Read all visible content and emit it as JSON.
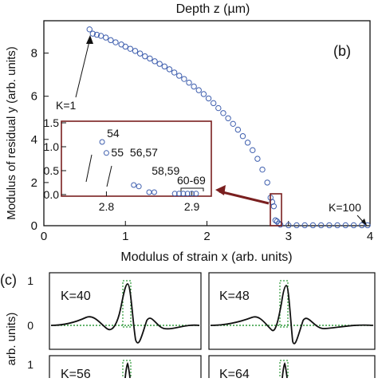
{
  "top_label": "Depth z (µm)",
  "chart_data": [
    {
      "type": "scatter",
      "panel": "(b)",
      "xlabel": "Modulus of strain x (arb. units)",
      "ylabel": "Modulus of residual y (arb. units)",
      "xlim": [
        0,
        4
      ],
      "ylim": [
        0,
        9.5
      ],
      "xticks": [
        "0",
        "1",
        "2",
        "3",
        "4"
      ],
      "yticks": [
        "0",
        "2",
        "4",
        "6",
        "8"
      ],
      "grid": false,
      "points": [
        [
          0.56,
          9.1
        ],
        [
          0.6,
          8.9
        ],
        [
          0.65,
          8.85
        ],
        [
          0.7,
          8.8
        ],
        [
          0.76,
          8.72
        ],
        [
          0.82,
          8.6
        ],
        [
          0.88,
          8.5
        ],
        [
          0.95,
          8.4
        ],
        [
          1.0,
          8.3
        ],
        [
          1.06,
          8.2
        ],
        [
          1.12,
          8.1
        ],
        [
          1.18,
          7.98
        ],
        [
          1.24,
          7.85
        ],
        [
          1.3,
          7.75
        ],
        [
          1.36,
          7.62
        ],
        [
          1.42,
          7.5
        ],
        [
          1.48,
          7.38
        ],
        [
          1.54,
          7.25
        ],
        [
          1.6,
          7.1
        ],
        [
          1.66,
          6.95
        ],
        [
          1.72,
          6.8
        ],
        [
          1.78,
          6.63
        ],
        [
          1.84,
          6.45
        ],
        [
          1.9,
          6.28
        ],
        [
          1.96,
          6.1
        ],
        [
          2.02,
          5.9
        ],
        [
          2.08,
          5.68
        ],
        [
          2.14,
          5.45
        ],
        [
          2.2,
          5.22
        ],
        [
          2.26,
          4.98
        ],
        [
          2.32,
          4.72
        ],
        [
          2.38,
          4.45
        ],
        [
          2.44,
          4.15
        ],
        [
          2.5,
          3.85
        ],
        [
          2.56,
          3.5
        ],
        [
          2.62,
          3.1
        ],
        [
          2.68,
          2.6
        ],
        [
          2.74,
          2.0
        ],
        [
          2.78,
          1.3
        ],
        [
          2.8,
          1.1
        ],
        [
          2.82,
          0.9
        ],
        [
          2.84,
          0.25
        ],
        [
          2.86,
          0.2
        ],
        [
          2.88,
          0.1
        ],
        [
          2.9,
          0.05
        ],
        [
          3.0,
          0.02
        ],
        [
          3.1,
          0.02
        ],
        [
          3.2,
          0.02
        ],
        [
          3.3,
          0.02
        ],
        [
          3.4,
          0.02
        ],
        [
          3.5,
          0.02
        ],
        [
          3.6,
          0.02
        ],
        [
          3.7,
          0.02
        ],
        [
          3.8,
          0.02
        ],
        [
          3.9,
          0.02
        ],
        [
          3.97,
          0.02
        ]
      ],
      "annotations": [
        {
          "text": "K=1",
          "x": 0.56,
          "y": 9.1
        },
        {
          "text": "K=100",
          "x": 3.97,
          "y": 0.02
        }
      ],
      "highlight_box": {
        "x": [
          2.78,
          2.91
        ],
        "y": [
          0,
          1.3
        ]
      }
    },
    {
      "type": "scatter",
      "panel": "inset",
      "xlim": [
        2.78,
        2.92
      ],
      "ylim": [
        0,
        1.5
      ],
      "xticks": [
        "2.8",
        "2.9"
      ],
      "yticks": [
        "0.0",
        "0.5",
        "1.0",
        "1.5"
      ],
      "points": [
        [
          2.795,
          1.1
        ],
        [
          2.8,
          0.87
        ],
        [
          2.832,
          0.2
        ],
        [
          2.838,
          0.17
        ],
        [
          2.85,
          0.05
        ],
        [
          2.856,
          0.05
        ],
        [
          2.88,
          0.02
        ],
        [
          2.885,
          0.02
        ],
        [
          2.89,
          0.02
        ],
        [
          2.895,
          0.02
        ],
        [
          2.9,
          0.02
        ],
        [
          2.905,
          0.02
        ]
      ],
      "labels": [
        {
          "text": "54",
          "x": 2.795,
          "y": 1.1
        },
        {
          "text": "55",
          "x": 2.8,
          "y": 0.87
        },
        {
          "text": "56,57",
          "x": 2.835,
          "y": 0.2
        },
        {
          "text": "58,59",
          "x": 2.853,
          "y": 0.05
        },
        {
          "text": "60-69",
          "x": 2.892,
          "y": 0.02
        }
      ]
    },
    {
      "type": "line",
      "panel": "(c)",
      "ylabel": "arb. units)",
      "yticks": [
        "0",
        "1"
      ],
      "subplots": [
        {
          "label": "K=40"
        },
        {
          "label": "K=48"
        },
        {
          "label": "K=56"
        },
        {
          "label": "K=64"
        }
      ]
    }
  ]
}
